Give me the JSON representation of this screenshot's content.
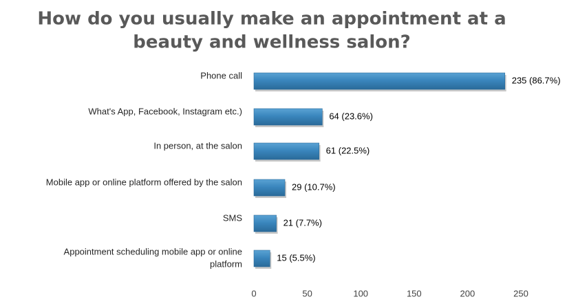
{
  "chart_data": {
    "type": "bar",
    "orientation": "horizontal",
    "title_lines": [
      "How do you usually make an appointment at a",
      "beauty and wellness salon?"
    ],
    "categories": [
      {
        "lines": [
          "Phone call"
        ]
      },
      {
        "lines": [
          "What's App, Facebook, Instagram etc.)"
        ]
      },
      {
        "lines": [
          "In person, at the salon"
        ]
      },
      {
        "lines": [
          "Mobile app or online platform offered by the salon"
        ]
      },
      {
        "lines": [
          "SMS"
        ]
      },
      {
        "lines": [
          "Appointment scheduling mobile app or online",
          "platform"
        ]
      }
    ],
    "values": [
      235,
      64,
      61,
      29,
      21,
      15
    ],
    "data_labels": [
      "235 (86.7%)",
      "64 (23.6%)",
      "61 (22.5%)",
      "29 (10.7%)",
      "21 (7.7%)",
      "15 (5.5%)"
    ],
    "x_ticks": [
      0,
      50,
      100,
      150,
      200,
      250
    ],
    "xlim": [
      0,
      250
    ],
    "grid": false,
    "bar_color": "#3a86bd",
    "bar_color_dark": "#2a6a99"
  }
}
